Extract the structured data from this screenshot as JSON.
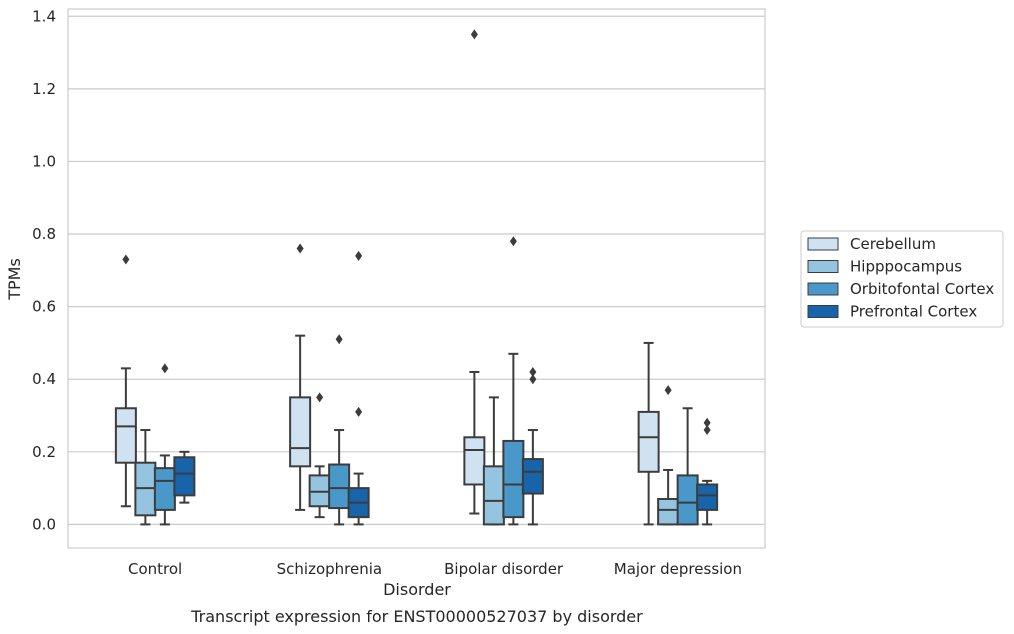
{
  "chart_data": {
    "type": "box",
    "title": "",
    "caption": "Transcript expression for ENST00000527037 by disorder",
    "xlabel": "Disorder",
    "ylabel": "TPMs",
    "ylim": [
      -0.065,
      1.42
    ],
    "yticks": [
      "0.0",
      "0.2",
      "0.4",
      "0.6",
      "0.8",
      "1.0",
      "1.2",
      "1.4"
    ],
    "grid": "horizontal",
    "legend_position": "right",
    "categories": [
      "Control",
      "Schizophrenia",
      "Bipolar disorder",
      "Major depression"
    ],
    "series": [
      {
        "name": "Cerebellum",
        "color": "#d0e1f2",
        "boxes": [
          {
            "whislo": 0.05,
            "q1": 0.17,
            "med": 0.27,
            "q3": 0.32,
            "whishi": 0.43,
            "fliers": [
              0.73
            ]
          },
          {
            "whislo": 0.04,
            "q1": 0.16,
            "med": 0.21,
            "q3": 0.35,
            "whishi": 0.52,
            "fliers": [
              0.76
            ]
          },
          {
            "whislo": 0.03,
            "q1": 0.11,
            "med": 0.205,
            "q3": 0.24,
            "whishi": 0.42,
            "fliers": [
              1.35
            ]
          },
          {
            "whislo": 0.0,
            "q1": 0.145,
            "med": 0.24,
            "q3": 0.31,
            "whishi": 0.5,
            "fliers": []
          }
        ]
      },
      {
        "name": "Hipppocampus",
        "color": "#94c4df",
        "boxes": [
          {
            "whislo": 0.0,
            "q1": 0.025,
            "med": 0.1,
            "q3": 0.17,
            "whishi": 0.26,
            "fliers": []
          },
          {
            "whislo": 0.02,
            "q1": 0.05,
            "med": 0.09,
            "q3": 0.135,
            "whishi": 0.16,
            "fliers": [
              0.35
            ]
          },
          {
            "whislo": 0.0,
            "q1": 0.0,
            "med": 0.065,
            "q3": 0.16,
            "whishi": 0.35,
            "fliers": []
          },
          {
            "whislo": 0.0,
            "q1": 0.0,
            "med": 0.04,
            "q3": 0.07,
            "whishi": 0.15,
            "fliers": [
              0.37
            ]
          }
        ]
      },
      {
        "name": "Orbitofontal Cortex",
        "color": "#4a98c9",
        "boxes": [
          {
            "whislo": 0.0,
            "q1": 0.04,
            "med": 0.12,
            "q3": 0.155,
            "whishi": 0.19,
            "fliers": [
              0.43
            ]
          },
          {
            "whislo": 0.0,
            "q1": 0.045,
            "med": 0.1,
            "q3": 0.165,
            "whishi": 0.26,
            "fliers": [
              0.51
            ]
          },
          {
            "whislo": 0.0,
            "q1": 0.02,
            "med": 0.11,
            "q3": 0.23,
            "whishi": 0.47,
            "fliers": [
              0.78
            ]
          },
          {
            "whislo": 0.0,
            "q1": 0.0,
            "med": 0.06,
            "q3": 0.135,
            "whishi": 0.32,
            "fliers": []
          }
        ]
      },
      {
        "name": "Prefrontal Cortex",
        "color": "#1764ab",
        "boxes": [
          {
            "whislo": 0.06,
            "q1": 0.08,
            "med": 0.14,
            "q3": 0.185,
            "whishi": 0.2,
            "fliers": []
          },
          {
            "whislo": 0.0,
            "q1": 0.02,
            "med": 0.06,
            "q3": 0.1,
            "whishi": 0.14,
            "fliers": [
              0.31,
              0.74
            ]
          },
          {
            "whislo": 0.0,
            "q1": 0.085,
            "med": 0.145,
            "q3": 0.18,
            "whishi": 0.26,
            "fliers": [
              0.4,
              0.42
            ]
          },
          {
            "whislo": 0.0,
            "q1": 0.04,
            "med": 0.08,
            "q3": 0.11,
            "whishi": 0.12,
            "fliers": [
              0.26,
              0.28
            ]
          }
        ]
      }
    ]
  }
}
